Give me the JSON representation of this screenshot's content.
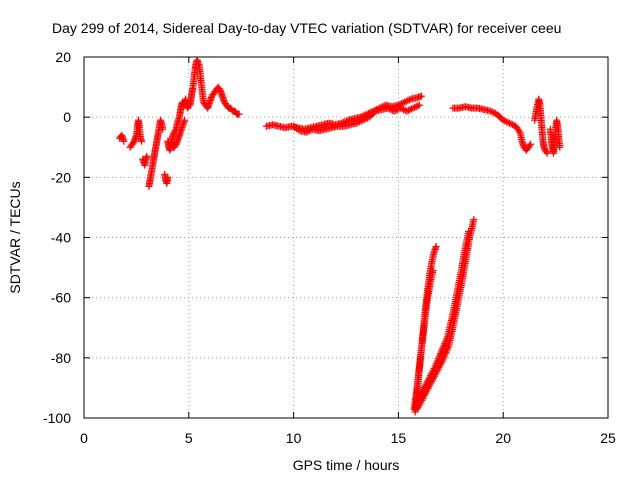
{
  "chart_data": {
    "type": "scatter",
    "title": "Day 299 of 2014, Sidereal Day-to-day VTEC variation (SDTVAR) for receiver ceeu",
    "xlabel": "GPS time / hours",
    "ylabel": "SDTVAR / TECUs",
    "xlim": [
      0,
      25
    ],
    "ylim": [
      -100,
      20
    ],
    "x_ticks": [
      0,
      5,
      10,
      15,
      20,
      25
    ],
    "x_tick_labels": [
      "0",
      "5",
      "10",
      "15",
      "20",
      "25"
    ],
    "y_ticks": [
      -100,
      -80,
      -60,
      -40,
      -20,
      0,
      20
    ],
    "y_tick_labels": [
      "-100",
      "-80",
      "-60",
      "-40",
      "-20",
      "0",
      "20"
    ],
    "grid": true,
    "marker": "+",
    "color": "#ff0000",
    "series": [
      {
        "name": "SDTVAR",
        "segments": [
          [
            [
              1.7,
              -7
            ],
            [
              1.8,
              -6
            ],
            [
              1.9,
              -8
            ]
          ],
          [
            [
              2.2,
              -10
            ],
            [
              2.3,
              -9
            ],
            [
              2.4,
              -8
            ],
            [
              2.5,
              -6
            ],
            [
              2.55,
              -3
            ],
            [
              2.6,
              -1
            ],
            [
              2.65,
              -4
            ],
            [
              2.7,
              -7
            ],
            [
              2.75,
              -8
            ]
          ],
          [
            [
              2.8,
              -14
            ],
            [
              2.85,
              -15
            ],
            [
              2.9,
              -16
            ],
            [
              2.95,
              -14
            ],
            [
              3.0,
              -13
            ]
          ],
          [
            [
              3.1,
              -23
            ],
            [
              3.15,
              -21
            ],
            [
              3.2,
              -19
            ],
            [
              3.25,
              -17
            ],
            [
              3.3,
              -15
            ],
            [
              3.35,
              -13
            ],
            [
              3.4,
              -11
            ],
            [
              3.45,
              -9
            ],
            [
              3.5,
              -7
            ],
            [
              3.55,
              -5
            ],
            [
              3.6,
              -3
            ],
            [
              3.65,
              -1
            ],
            [
              3.7,
              -2
            ],
            [
              3.75,
              -4
            ]
          ],
          [
            [
              3.85,
              -19
            ],
            [
              3.9,
              -21
            ],
            [
              3.95,
              -22
            ],
            [
              4.0,
              -20
            ]
          ],
          [
            [
              4.0,
              -8
            ],
            [
              4.05,
              -10
            ],
            [
              4.1,
              -11
            ],
            [
              4.15,
              -9
            ],
            [
              4.2,
              -7
            ],
            [
              4.3,
              -5
            ],
            [
              4.4,
              -4
            ],
            [
              4.45,
              -2
            ],
            [
              4.5,
              -1
            ],
            [
              4.55,
              0
            ],
            [
              4.6,
              2
            ],
            [
              4.65,
              4
            ],
            [
              4.7,
              5
            ],
            [
              4.75,
              4
            ],
            [
              4.8,
              5
            ],
            [
              4.85,
              6
            ],
            [
              4.9,
              4
            ],
            [
              4.95,
              3
            ],
            [
              5.0,
              5
            ],
            [
              5.05,
              4
            ],
            [
              5.1,
              6
            ],
            [
              5.15,
              8
            ],
            [
              5.2,
              10
            ],
            [
              5.25,
              13
            ],
            [
              5.3,
              16
            ],
            [
              5.35,
              18
            ],
            [
              5.4,
              19
            ],
            [
              5.45,
              18
            ],
            [
              5.5,
              17
            ],
            [
              5.55,
              14
            ],
            [
              5.6,
              11
            ],
            [
              5.65,
              8
            ],
            [
              5.7,
              5
            ],
            [
              5.8,
              4
            ],
            [
              5.9,
              3
            ],
            [
              6.0,
              5
            ],
            [
              6.1,
              7
            ],
            [
              6.2,
              8
            ],
            [
              6.3,
              9
            ],
            [
              6.4,
              10
            ],
            [
              6.5,
              9
            ],
            [
              6.6,
              7
            ],
            [
              6.7,
              5
            ],
            [
              6.8,
              4
            ],
            [
              6.9,
              3
            ],
            [
              7.0,
              3
            ],
            [
              7.1,
              2
            ],
            [
              7.2,
              2
            ],
            [
              7.3,
              1
            ],
            [
              7.4,
              1
            ]
          ],
          [
            [
              4.2,
              -9
            ],
            [
              4.3,
              -10
            ],
            [
              4.4,
              -9
            ],
            [
              4.5,
              -7
            ],
            [
              4.6,
              -5
            ],
            [
              4.7,
              -3
            ],
            [
              4.8,
              -1
            ]
          ],
          [
            [
              8.7,
              -3
            ],
            [
              9.0,
              -2.5
            ],
            [
              9.3,
              -3
            ],
            [
              9.6,
              -3.5
            ],
            [
              9.9,
              -3
            ],
            [
              10.2,
              -3.5
            ],
            [
              10.5,
              -4
            ],
            [
              10.8,
              -3.5
            ],
            [
              11.1,
              -3
            ],
            [
              11.4,
              -2.5
            ],
            [
              11.7,
              -2
            ],
            [
              12.0,
              -2.5
            ],
            [
              12.3,
              -2
            ],
            [
              12.6,
              -1
            ],
            [
              12.9,
              -0.5
            ],
            [
              13.2,
              0
            ],
            [
              13.5,
              1
            ],
            [
              13.8,
              2
            ],
            [
              14.1,
              3
            ],
            [
              14.4,
              4
            ],
            [
              14.7,
              3.5
            ],
            [
              15.0,
              4
            ],
            [
              15.3,
              5
            ],
            [
              15.6,
              6
            ],
            [
              15.9,
              6.5
            ],
            [
              16.1,
              7
            ]
          ],
          [
            [
              10.0,
              -3
            ],
            [
              10.3,
              -4.5
            ],
            [
              10.6,
              -5
            ],
            [
              10.9,
              -4
            ],
            [
              11.2,
              -4.5
            ],
            [
              11.5,
              -4
            ],
            [
              11.8,
              -3.5
            ],
            [
              12.1,
              -3
            ],
            [
              12.4,
              -3
            ],
            [
              12.7,
              -2.5
            ],
            [
              13.0,
              -2
            ],
            [
              13.3,
              -1
            ],
            [
              13.6,
              0
            ],
            [
              13.9,
              2
            ],
            [
              14.2,
              2.5
            ],
            [
              14.5,
              3
            ],
            [
              14.8,
              2
            ],
            [
              15.1,
              3
            ],
            [
              15.4,
              2
            ],
            [
              15.7,
              3
            ],
            [
              16.0,
              4
            ]
          ],
          [
            [
              17.6,
              3
            ],
            [
              17.9,
              3
            ],
            [
              18.2,
              3.5
            ],
            [
              18.5,
              3
            ],
            [
              18.8,
              3
            ],
            [
              19.1,
              2.5
            ],
            [
              19.4,
              2
            ],
            [
              19.7,
              1
            ],
            [
              20.0,
              -1
            ],
            [
              20.3,
              -2
            ],
            [
              20.6,
              -3
            ],
            [
              20.8,
              -5
            ],
            [
              20.9,
              -8
            ],
            [
              21.0,
              -10
            ],
            [
              21.1,
              -11
            ],
            [
              21.2,
              -10
            ],
            [
              21.3,
              -9
            ]
          ],
          [
            [
              21.5,
              -1
            ],
            [
              21.6,
              3
            ],
            [
              21.7,
              6
            ],
            [
              21.75,
              4
            ],
            [
              21.8,
              0
            ],
            [
              21.85,
              -4
            ],
            [
              21.9,
              -8
            ],
            [
              21.95,
              -10
            ],
            [
              22.0,
              -11
            ],
            [
              22.1,
              -12
            ]
          ],
          [
            [
              22.25,
              -4
            ],
            [
              22.3,
              -8
            ],
            [
              22.35,
              -10
            ],
            [
              22.4,
              -12
            ],
            [
              22.45,
              -9
            ],
            [
              22.5,
              -4
            ],
            [
              22.55,
              -1
            ],
            [
              22.6,
              -3
            ],
            [
              22.65,
              -7
            ],
            [
              22.7,
              -10
            ]
          ],
          [
            [
              15.8,
              -98
            ],
            [
              15.9,
              -91
            ],
            [
              16.0,
              -84
            ],
            [
              16.1,
              -77
            ],
            [
              16.2,
              -70
            ],
            [
              16.3,
              -63
            ],
            [
              16.4,
              -57
            ],
            [
              16.5,
              -52
            ],
            [
              16.6,
              -48
            ],
            [
              16.7,
              -45
            ],
            [
              16.8,
              -43
            ]
          ],
          [
            [
              15.75,
              -97
            ],
            [
              15.85,
              -92
            ],
            [
              15.95,
              -86
            ],
            [
              16.05,
              -80
            ],
            [
              16.15,
              -74
            ],
            [
              16.25,
              -68
            ],
            [
              16.35,
              -62
            ],
            [
              16.45,
              -58
            ],
            [
              16.55,
              -54
            ],
            [
              16.65,
              -51
            ]
          ],
          [
            [
              15.9,
              -97
            ],
            [
              16.2,
              -93
            ],
            [
              16.5,
              -89
            ],
            [
              16.8,
              -85
            ],
            [
              17.1,
              -81
            ],
            [
              17.4,
              -76
            ],
            [
              17.6,
              -70
            ],
            [
              17.8,
              -63
            ],
            [
              18.0,
              -56
            ],
            [
              18.2,
              -48
            ],
            [
              18.4,
              -40
            ],
            [
              18.6,
              -34
            ]
          ],
          [
            [
              15.85,
              -95
            ],
            [
              16.15,
              -91
            ],
            [
              16.45,
              -87
            ],
            [
              16.75,
              -83
            ],
            [
              17.05,
              -78
            ],
            [
              17.35,
              -73
            ],
            [
              17.55,
              -67
            ],
            [
              17.75,
              -60
            ],
            [
              17.95,
              -53
            ],
            [
              18.15,
              -45
            ],
            [
              18.35,
              -38
            ]
          ]
        ]
      }
    ]
  }
}
